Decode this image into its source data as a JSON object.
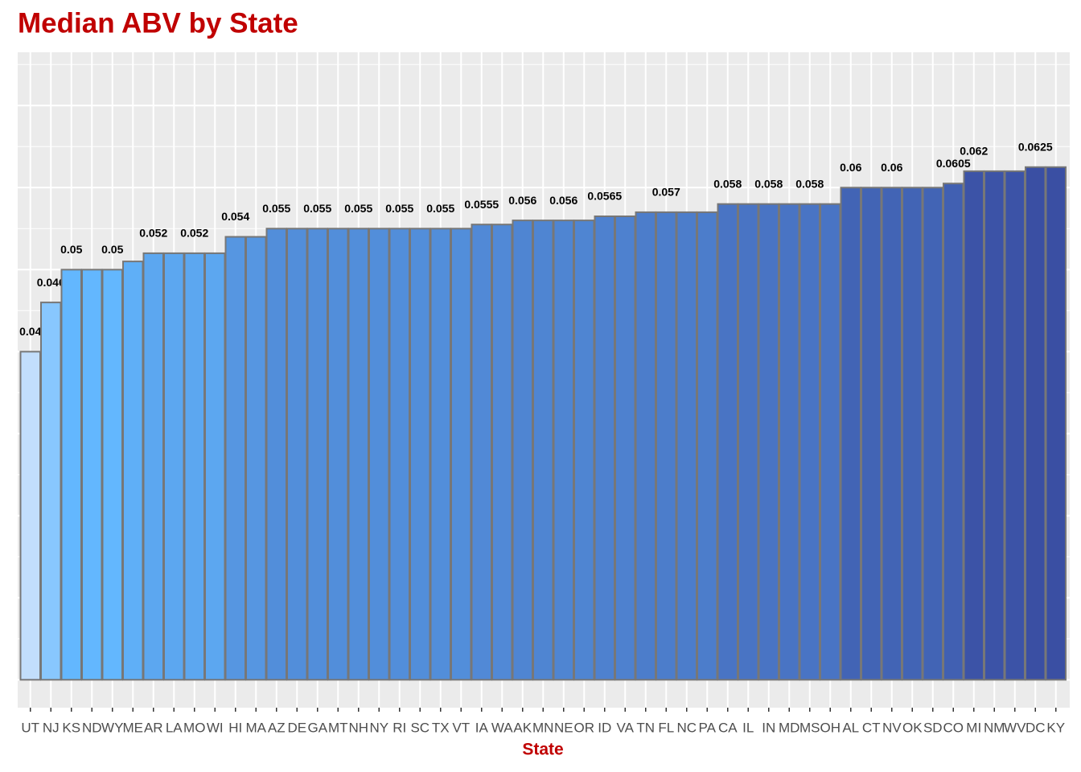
{
  "chart_data": {
    "type": "bar",
    "title": "Median ABV by State",
    "x_label": "State",
    "categories": [
      "UT",
      "NJ",
      "KS",
      "ND",
      "WY",
      "ME",
      "AR",
      "LA",
      "MO",
      "WI",
      "HI",
      "MA",
      "AZ",
      "DE",
      "GA",
      "MT",
      "NH",
      "NY",
      "RI",
      "SC",
      "TX",
      "VT",
      "IA",
      "WA",
      "AK",
      "MN",
      "NE",
      "OR",
      "ID",
      "VA",
      "TN",
      "FL",
      "NC",
      "PA",
      "CA",
      "IL",
      "IN",
      "MD",
      "MS",
      "OH",
      "AL",
      "CT",
      "NV",
      "OK",
      "SD",
      "CO",
      "MI",
      "NM",
      "WV",
      "DC",
      "KY"
    ],
    "values": [
      0.04,
      0.046,
      0.05,
      0.05,
      0.05,
      0.051,
      0.052,
      0.052,
      0.052,
      0.052,
      0.054,
      0.054,
      0.055,
      0.055,
      0.055,
      0.055,
      0.055,
      0.055,
      0.055,
      0.055,
      0.055,
      0.055,
      0.0555,
      0.0555,
      0.056,
      0.056,
      0.056,
      0.056,
      0.0565,
      0.0565,
      0.057,
      0.057,
      0.057,
      0.057,
      0.058,
      0.058,
      0.058,
      0.058,
      0.058,
      0.058,
      0.06,
      0.06,
      0.06,
      0.06,
      0.06,
      0.0605,
      0.062,
      0.062,
      0.062,
      0.0625,
      0.0625
    ],
    "value_labels": [
      "0.04",
      "0.046",
      "0.05",
      null,
      "0.05",
      null,
      "0.052",
      null,
      "0.052",
      null,
      "0.054",
      null,
      "0.055",
      null,
      "0.055",
      null,
      "0.055",
      null,
      "0.055",
      null,
      "0.055",
      null,
      "0.0555",
      null,
      "0.056",
      null,
      "0.056",
      null,
      "0.0565",
      null,
      null,
      "0.057",
      null,
      null,
      "0.058",
      null,
      "0.058",
      null,
      "0.058",
      null,
      "0.06",
      null,
      "0.06",
      null,
      null,
      "0.0605",
      "0.062",
      null,
      null,
      "0.0625",
      null
    ],
    "color_low": "#c2defc",
    "color_mid": "#63b8ff",
    "color_high": "#3a4fa3",
    "bar_outline": "#777777",
    "ylim": [
      -0.0034,
      0.0765
    ],
    "yticks": [
      0,
      0.01,
      0.02,
      0.03,
      0.04,
      0.05,
      0.06,
      0.07
    ],
    "grid": true
  }
}
